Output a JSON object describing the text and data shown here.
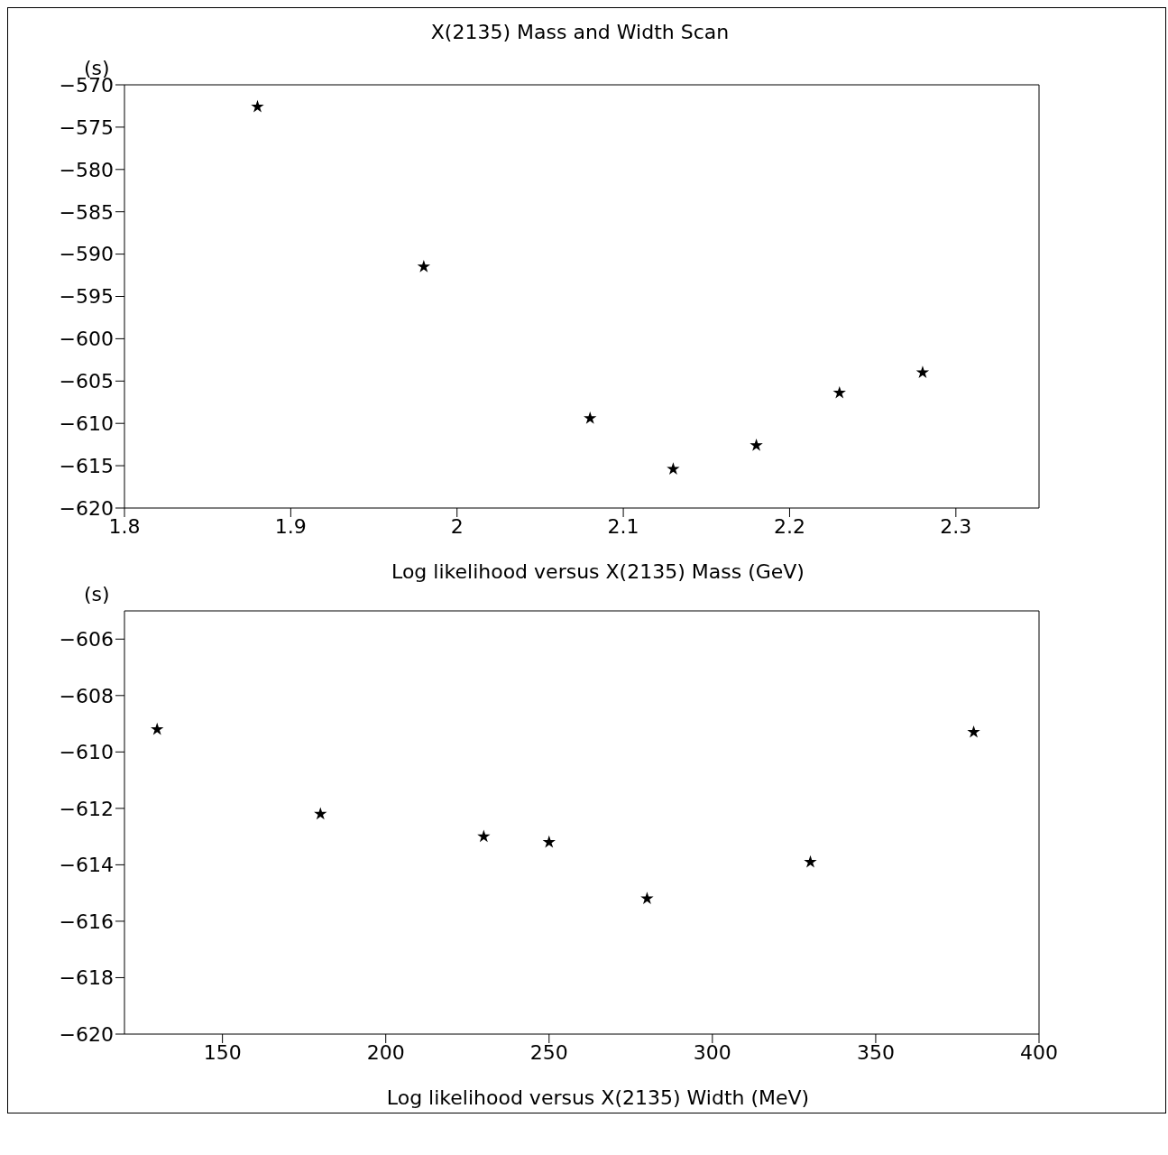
{
  "chart_data": [
    {
      "type": "scatter",
      "title": "X(2135) Mass and Width Scan",
      "xlabel": "Log likelihood versus X(2135) Mass (GeV)",
      "ylabel": "(s)",
      "marker": "star",
      "grid": false,
      "legend": false,
      "xlim": [
        1.8,
        2.35
      ],
      "xticks": [
        1.8,
        1.9,
        2,
        2.1,
        2.2,
        2.3
      ],
      "ylim": [
        -620,
        -570
      ],
      "yticks": [
        -620,
        -615,
        -610,
        -605,
        -600,
        -595,
        -590,
        -585,
        -580,
        -575,
        -570
      ],
      "x": [
        1.88,
        1.98,
        2.08,
        2.13,
        2.18,
        2.23,
        2.28
      ],
      "series": [
        {
          "color": "#000000",
          "values": [
            -572.6,
            -591.5,
            -609.4,
            -615.4,
            -612.6,
            -606.4,
            -604.0
          ]
        }
      ]
    },
    {
      "type": "scatter",
      "xlabel": "Log likelihood versus X(2135) Width (MeV)",
      "ylabel": "(s)",
      "marker": "star",
      "grid": false,
      "legend": false,
      "xlim": [
        120,
        400
      ],
      "xticks": [
        150,
        200,
        250,
        300,
        350,
        400
      ],
      "ylim": [
        -620,
        -605
      ],
      "yticks": [
        -620,
        -618,
        -616,
        -614,
        -612,
        -610,
        -608,
        -606
      ],
      "x": [
        130,
        180,
        230,
        250,
        280,
        330,
        380
      ],
      "series": [
        {
          "color": "#000000",
          "values": [
            -609.2,
            -612.2,
            -613.0,
            -613.2,
            -615.2,
            -613.9,
            -609.3
          ]
        }
      ]
    }
  ]
}
